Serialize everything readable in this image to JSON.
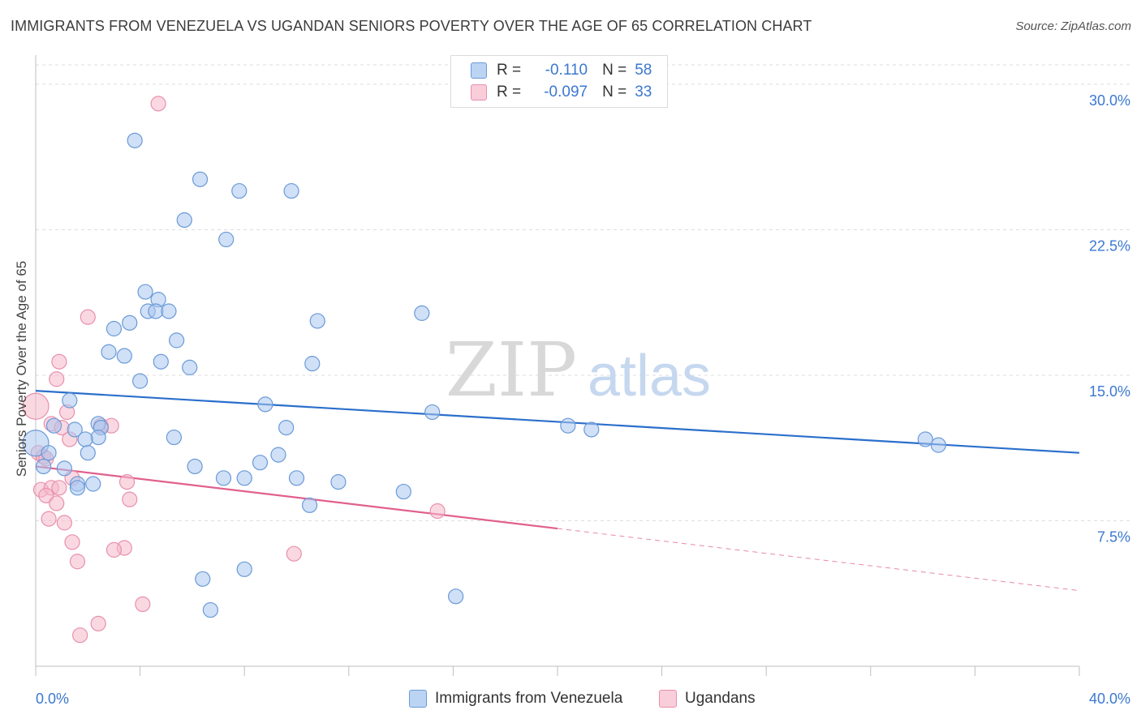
{
  "title": "IMMIGRANTS FROM VENEZUELA VS UGANDAN SENIORS POVERTY OVER THE AGE OF 65 CORRELATION CHART",
  "source": "Source: ZipAtlas.com",
  "watermark": {
    "zip": "ZIP",
    "atlas": "atlas"
  },
  "legend_top": {
    "rows": [
      {
        "r_label": "R =",
        "r_value": "-0.110",
        "n_label": "N =",
        "n_value": "58"
      },
      {
        "r_label": "R =",
        "r_value": "-0.097",
        "n_label": "N =",
        "n_value": "33"
      }
    ]
  },
  "colors": {
    "blue_fill": "#a9c7ef",
    "blue_stroke": "#6a9ad8",
    "blue_line": "#2b6fcc",
    "pink_fill": "#f6b8cb",
    "pink_stroke": "#e890ad",
    "pink_line": "#e0608e",
    "axis_label": "#3b78d0"
  },
  "chart_data": {
    "type": "scatter",
    "title": "IMMIGRANTS FROM VENEZUELA VS UGANDAN SENIORS POVERTY OVER THE AGE OF 65 CORRELATION CHART",
    "xlabel": "",
    "ylabel": "Seniors Poverty Over the Age of 65",
    "xlim": [
      0,
      40
    ],
    "ylim": [
      0,
      31
    ],
    "x_tick_labels": [
      "0.0%",
      "40.0%"
    ],
    "y_ticks": [
      7.5,
      15.0,
      22.5,
      30.0
    ],
    "y_tick_labels": [
      "7.5%",
      "15.0%",
      "22.5%",
      "30.0%"
    ],
    "grid": "horizontal dashed",
    "legend_position": "bottom-center",
    "series": [
      {
        "name": "Immigrants from Venezuela",
        "color": "#a9c7ef",
        "r": -0.11,
        "n": 58,
        "trend": {
          "x": [
            0,
            40
          ],
          "y": [
            14.2,
            11.0
          ],
          "solid_to": 40
        },
        "points": [
          [
            3.8,
            27.1
          ],
          [
            6.3,
            25.1
          ],
          [
            7.8,
            24.5
          ],
          [
            9.8,
            24.5
          ],
          [
            5.7,
            23.0
          ],
          [
            7.3,
            22.0
          ],
          [
            4.2,
            19.3
          ],
          [
            4.7,
            18.9
          ],
          [
            4.3,
            18.3
          ],
          [
            4.6,
            18.3
          ],
          [
            5.1,
            18.3
          ],
          [
            14.8,
            18.2
          ],
          [
            3.6,
            17.7
          ],
          [
            10.8,
            17.8
          ],
          [
            3.0,
            17.4
          ],
          [
            5.4,
            16.8
          ],
          [
            2.8,
            16.2
          ],
          [
            3.4,
            16.0
          ],
          [
            4.8,
            15.7
          ],
          [
            10.6,
            15.6
          ],
          [
            5.9,
            15.4
          ],
          [
            4.0,
            14.7
          ],
          [
            1.3,
            13.7
          ],
          [
            8.8,
            13.5
          ],
          [
            15.2,
            13.1
          ],
          [
            0.7,
            12.4
          ],
          [
            2.4,
            12.5
          ],
          [
            9.6,
            12.3
          ],
          [
            20.4,
            12.4
          ],
          [
            21.3,
            12.2
          ],
          [
            1.5,
            12.2
          ],
          [
            2.5,
            12.3
          ],
          [
            2.4,
            11.8
          ],
          [
            5.3,
            11.8
          ],
          [
            0.0,
            11.5
          ],
          [
            1.9,
            11.7
          ],
          [
            34.1,
            11.7
          ],
          [
            34.6,
            11.4
          ],
          [
            0.5,
            11.0
          ],
          [
            2.0,
            11.0
          ],
          [
            9.3,
            10.9
          ],
          [
            8.6,
            10.5
          ],
          [
            0.3,
            10.3
          ],
          [
            1.1,
            10.2
          ],
          [
            6.1,
            10.3
          ],
          [
            7.2,
            9.7
          ],
          [
            8.0,
            9.7
          ],
          [
            10.0,
            9.7
          ],
          [
            11.6,
            9.5
          ],
          [
            1.6,
            9.4
          ],
          [
            2.2,
            9.4
          ],
          [
            1.6,
            9.2
          ],
          [
            14.1,
            9.0
          ],
          [
            10.5,
            8.3
          ],
          [
            8.0,
            5.0
          ],
          [
            6.4,
            4.5
          ],
          [
            16.1,
            3.6
          ],
          [
            6.7,
            2.9
          ]
        ]
      },
      {
        "name": "Ugandans",
        "color": "#f6b8cb",
        "r": -0.097,
        "n": 33,
        "trend": {
          "x": [
            0,
            40
          ],
          "y": [
            10.3,
            3.9
          ],
          "solid_to": 20
        },
        "points": [
          [
            4.7,
            29.0
          ],
          [
            2.0,
            18.0
          ],
          [
            0.9,
            15.7
          ],
          [
            0.8,
            14.8
          ],
          [
            0.0,
            13.4
          ],
          [
            1.2,
            13.1
          ],
          [
            0.6,
            12.5
          ],
          [
            1.0,
            12.3
          ],
          [
            2.5,
            12.4
          ],
          [
            2.9,
            12.4
          ],
          [
            1.3,
            11.7
          ],
          [
            0.1,
            11.0
          ],
          [
            0.3,
            10.8
          ],
          [
            0.4,
            10.7
          ],
          [
            1.4,
            9.7
          ],
          [
            3.5,
            9.5
          ],
          [
            0.2,
            9.1
          ],
          [
            0.6,
            9.2
          ],
          [
            0.9,
            9.2
          ],
          [
            0.4,
            8.8
          ],
          [
            0.8,
            8.4
          ],
          [
            3.6,
            8.6
          ],
          [
            15.4,
            8.0
          ],
          [
            0.5,
            7.6
          ],
          [
            1.1,
            7.4
          ],
          [
            1.4,
            6.4
          ],
          [
            3.4,
            6.1
          ],
          [
            3.0,
            6.0
          ],
          [
            9.9,
            5.8
          ],
          [
            1.6,
            5.4
          ],
          [
            4.1,
            3.2
          ],
          [
            2.4,
            2.2
          ],
          [
            1.7,
            1.6
          ]
        ]
      }
    ]
  }
}
